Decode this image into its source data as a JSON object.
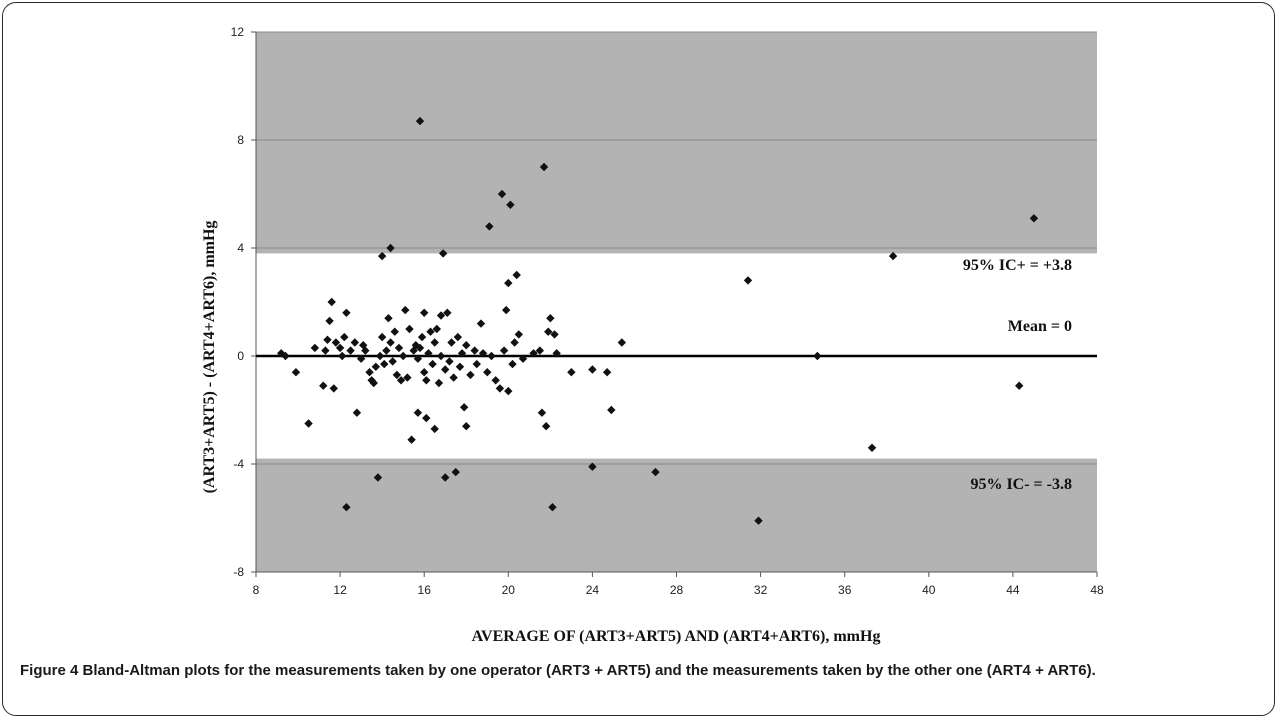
{
  "figure": {
    "label": "Figure 4",
    "caption": "Bland-Altman plots for the measurements taken by one operator (ART3 + ART5) and the measurements taken by the other one (ART4 + ART6)."
  },
  "chart_data": {
    "type": "scatter",
    "title": "",
    "xlabel": "AVERAGE OF (ART3+ART5) AND (ART4+ART6), mmHg",
    "ylabel": "(ART3+ART5) - (ART4+ART6), mmHg",
    "xlim": [
      8,
      48
    ],
    "ylim": [
      -8,
      12
    ],
    "xticks": [
      8,
      12,
      16,
      20,
      24,
      28,
      32,
      36,
      40,
      44,
      48
    ],
    "yticks": [
      -8,
      -4,
      0,
      4,
      8,
      12
    ],
    "grid": true,
    "limits": {
      "mean": 0,
      "upper": 3.8,
      "lower": -3.8
    },
    "annotations": {
      "upper": "95% IC+ = +3.8",
      "mean": "Mean = 0",
      "lower": "95% IC- = -3.8"
    },
    "colors": {
      "band": "#b3b3b3",
      "marker": "#111111",
      "mean_line": "#000000"
    },
    "marker": "diamond",
    "points": [
      [
        9.2,
        0.1
      ],
      [
        9.4,
        0.0
      ],
      [
        9.9,
        -0.6
      ],
      [
        10.5,
        -2.5
      ],
      [
        10.8,
        0.3
      ],
      [
        11.2,
        -1.1
      ],
      [
        11.3,
        0.2
      ],
      [
        11.4,
        0.6
      ],
      [
        11.5,
        1.3
      ],
      [
        11.6,
        2.0
      ],
      [
        11.7,
        -1.2
      ],
      [
        11.8,
        0.5
      ],
      [
        12.0,
        0.3
      ],
      [
        12.1,
        0.0
      ],
      [
        12.2,
        0.7
      ],
      [
        12.3,
        -5.6
      ],
      [
        12.3,
        1.6
      ],
      [
        12.5,
        0.2
      ],
      [
        12.7,
        0.5
      ],
      [
        12.8,
        -2.1
      ],
      [
        13.0,
        -0.1
      ],
      [
        13.1,
        0.4
      ],
      [
        13.2,
        0.2
      ],
      [
        13.4,
        -0.6
      ],
      [
        13.5,
        -0.9
      ],
      [
        13.6,
        -1.0
      ],
      [
        13.7,
        -0.4
      ],
      [
        13.8,
        -4.5
      ],
      [
        13.9,
        0.0
      ],
      [
        14.0,
        0.7
      ],
      [
        14.0,
        3.7
      ],
      [
        14.1,
        -0.3
      ],
      [
        14.2,
        0.2
      ],
      [
        14.3,
        1.4
      ],
      [
        14.4,
        0.5
      ],
      [
        14.4,
        4.0
      ],
      [
        14.5,
        -0.2
      ],
      [
        14.6,
        0.9
      ],
      [
        14.7,
        -0.7
      ],
      [
        14.8,
        0.3
      ],
      [
        14.9,
        -0.9
      ],
      [
        15.0,
        0.0
      ],
      [
        15.1,
        1.7
      ],
      [
        15.2,
        -0.8
      ],
      [
        15.3,
        1.0
      ],
      [
        15.4,
        -3.1
      ],
      [
        15.5,
        0.2
      ],
      [
        15.6,
        0.4
      ],
      [
        15.7,
        -0.1
      ],
      [
        15.7,
        -2.1
      ],
      [
        15.8,
        8.7
      ],
      [
        15.8,
        0.3
      ],
      [
        15.9,
        0.7
      ],
      [
        16.0,
        1.6
      ],
      [
        16.0,
        -0.6
      ],
      [
        16.1,
        -0.9
      ],
      [
        16.1,
        -2.3
      ],
      [
        16.2,
        0.1
      ],
      [
        16.3,
        0.9
      ],
      [
        16.4,
        -0.3
      ],
      [
        16.5,
        -2.7
      ],
      [
        16.5,
        0.5
      ],
      [
        16.6,
        1.0
      ],
      [
        16.7,
        -1.0
      ],
      [
        16.8,
        0.0
      ],
      [
        16.8,
        1.5
      ],
      [
        16.9,
        3.8
      ],
      [
        17.0,
        -0.5
      ],
      [
        17.0,
        -4.5
      ],
      [
        17.1,
        1.6
      ],
      [
        17.2,
        -0.2
      ],
      [
        17.3,
        0.5
      ],
      [
        17.4,
        -0.8
      ],
      [
        17.5,
        -4.3
      ],
      [
        17.6,
        0.7
      ],
      [
        17.7,
        -0.4
      ],
      [
        17.8,
        0.1
      ],
      [
        17.9,
        -1.9
      ],
      [
        18.0,
        -2.6
      ],
      [
        18.0,
        0.4
      ],
      [
        18.2,
        -0.7
      ],
      [
        18.4,
        0.2
      ],
      [
        18.5,
        -0.3
      ],
      [
        18.7,
        1.2
      ],
      [
        18.8,
        0.1
      ],
      [
        19.0,
        -0.6
      ],
      [
        19.1,
        4.8
      ],
      [
        19.2,
        0.0
      ],
      [
        19.4,
        -0.9
      ],
      [
        19.6,
        -1.2
      ],
      [
        19.7,
        6.0
      ],
      [
        19.8,
        0.2
      ],
      [
        19.9,
        1.7
      ],
      [
        20.0,
        -1.3
      ],
      [
        20.0,
        2.7
      ],
      [
        20.1,
        5.6
      ],
      [
        20.2,
        -0.3
      ],
      [
        20.3,
        0.5
      ],
      [
        20.4,
        3.0
      ],
      [
        20.5,
        0.8
      ],
      [
        20.7,
        -0.1
      ],
      [
        21.2,
        0.1
      ],
      [
        21.5,
        0.2
      ],
      [
        21.6,
        -2.1
      ],
      [
        21.7,
        7.0
      ],
      [
        21.8,
        -2.6
      ],
      [
        21.9,
        0.9
      ],
      [
        22.0,
        1.4
      ],
      [
        22.1,
        -5.6
      ],
      [
        22.2,
        0.8
      ],
      [
        22.3,
        0.1
      ],
      [
        23.0,
        -0.6
      ],
      [
        24.0,
        -4.1
      ],
      [
        24.0,
        -0.5
      ],
      [
        24.7,
        -0.6
      ],
      [
        24.9,
        -2.0
      ],
      [
        25.4,
        0.5
      ],
      [
        27.0,
        -4.3
      ],
      [
        31.4,
        2.8
      ],
      [
        31.9,
        -6.1
      ],
      [
        34.7,
        0.0
      ],
      [
        37.3,
        -3.4
      ],
      [
        38.3,
        3.7
      ],
      [
        44.3,
        -1.1
      ],
      [
        45.0,
        5.1
      ]
    ]
  }
}
